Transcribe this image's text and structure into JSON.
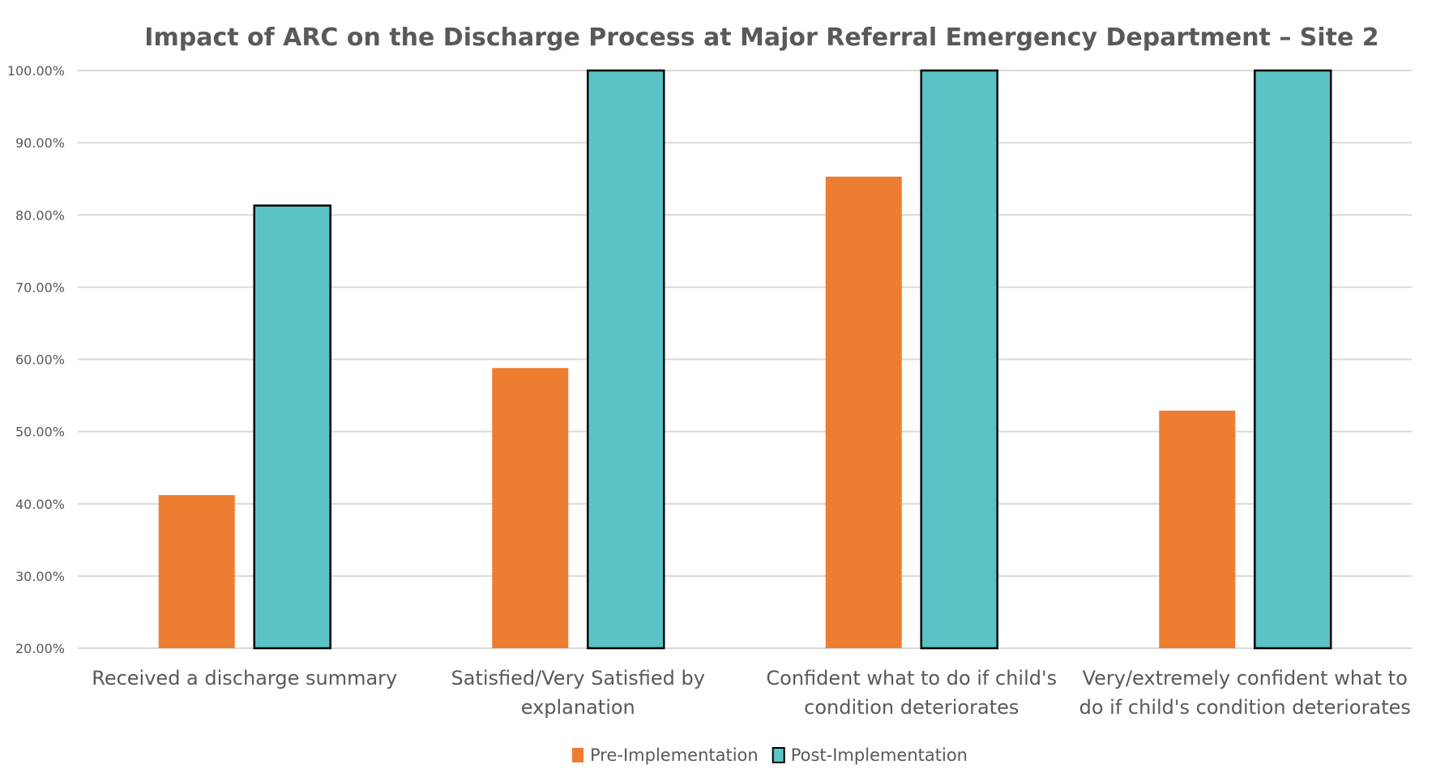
{
  "chart_data": {
    "type": "bar",
    "title": "Impact of ARC on the Discharge Process at Major Referral Emergency Department – Site 2",
    "xlabel": "",
    "ylabel": "",
    "ylim": [
      20,
      100
    ],
    "yticks": [
      20,
      30,
      40,
      50,
      60,
      70,
      80,
      90,
      100
    ],
    "ytick_labels": [
      "20.00%",
      "30.00%",
      "40.00%",
      "50.00%",
      "60.00%",
      "70.00%",
      "80.00%",
      "90.00%",
      "100.00%"
    ],
    "grid": true,
    "legend_position": "bottom",
    "categories": [
      [
        "Received a discharge summary"
      ],
      [
        "Satisfied/Very Satisfied by",
        "explanation"
      ],
      [
        "Confident what to do if child's",
        "condition deteriorates"
      ],
      [
        "Very/extremely confident what to",
        "do if child's condition deteriorates"
      ]
    ],
    "series": [
      {
        "name": "Pre-Implementation",
        "color": "#ED7D31",
        "outline": "none",
        "values": [
          41.2,
          58.8,
          85.3,
          52.9
        ]
      },
      {
        "name": "Post-Implementation",
        "color": "#5BC2C5",
        "outline": "#000000",
        "values": [
          81.3,
          100,
          100,
          100
        ]
      }
    ]
  }
}
